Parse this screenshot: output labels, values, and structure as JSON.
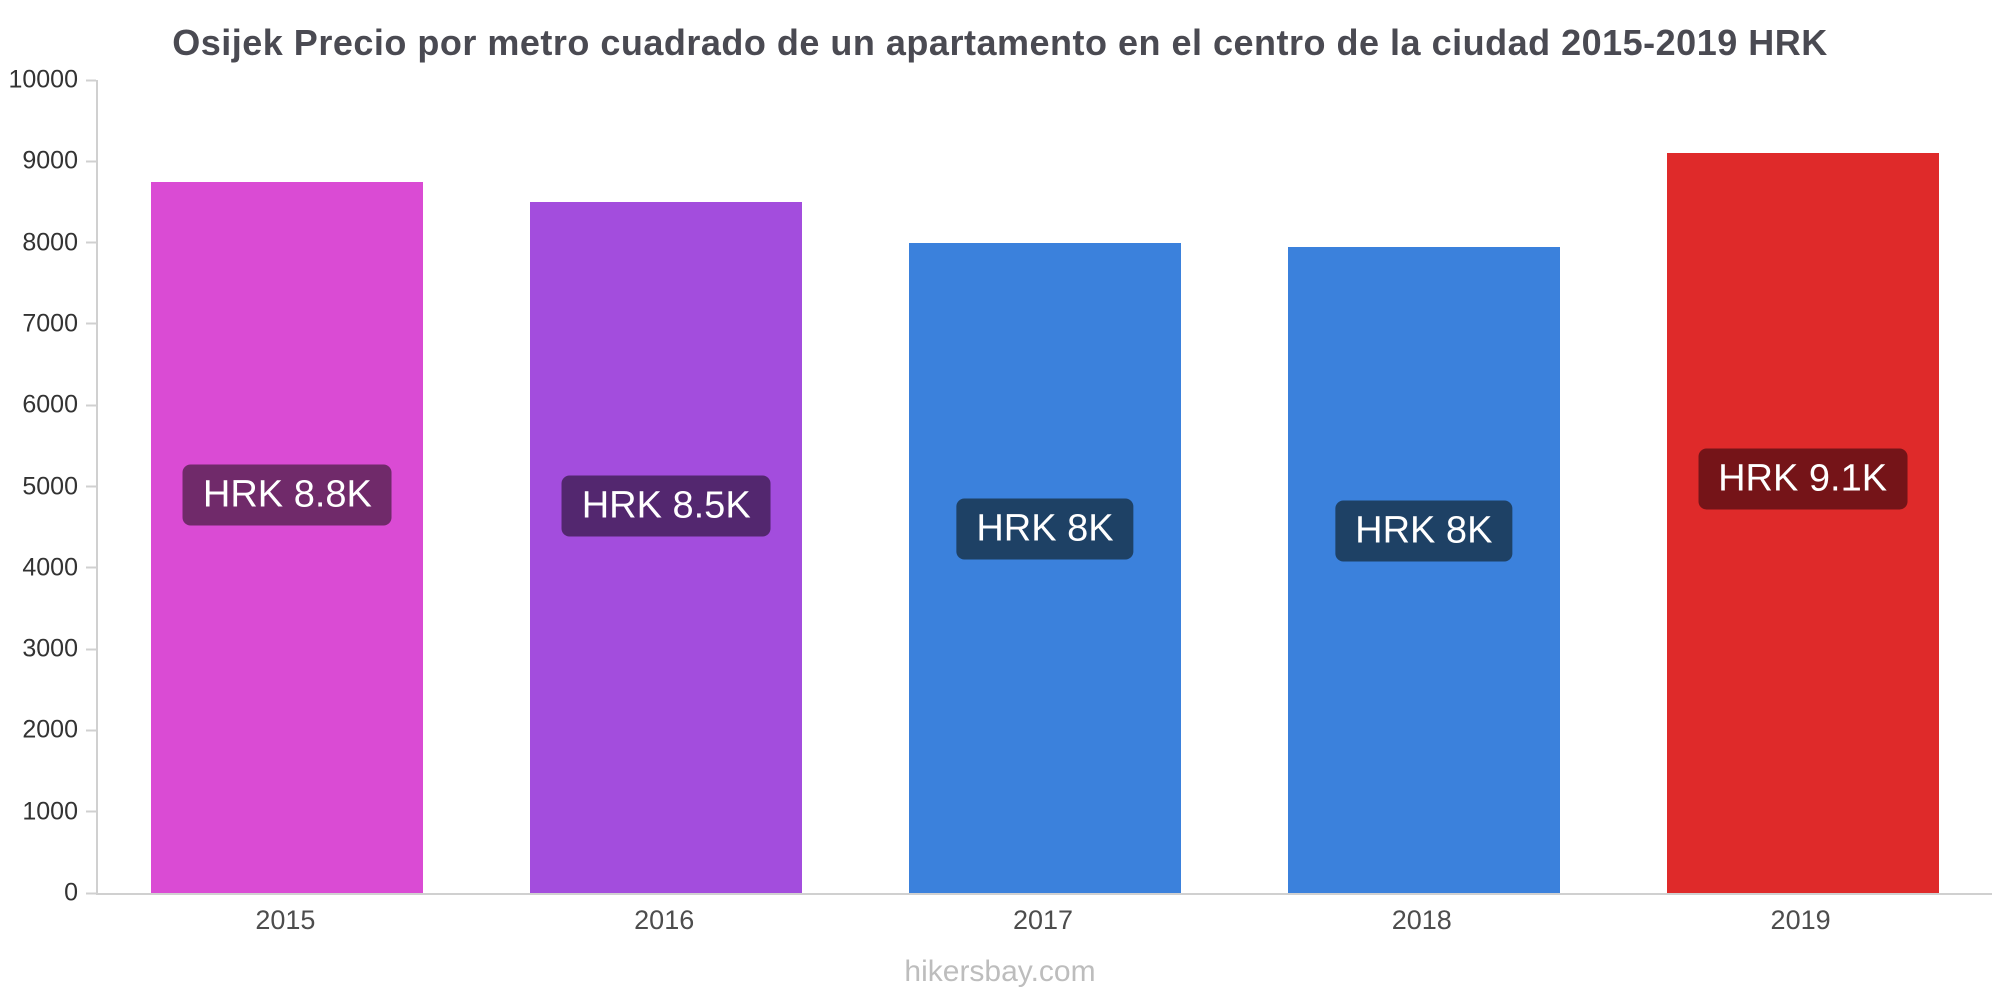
{
  "page": {
    "watermark": "hikersbay.com"
  },
  "chart_data": {
    "type": "bar",
    "title": "Osijek Precio por metro cuadrado de un apartamento en el centro de la ciudad 2015-2019 HRK",
    "categories": [
      "2015",
      "2016",
      "2017",
      "2018",
      "2019"
    ],
    "values": [
      8750,
      8500,
      8000,
      7950,
      9100
    ],
    "bar_labels": [
      "HRK 8.8K",
      "HRK 8.5K",
      "HRK 8K",
      "HRK 8K",
      "HRK 9.1K"
    ],
    "bar_colors": [
      "#da4bd4",
      "#a34ddd",
      "#3b81dc",
      "#3b81dc",
      "#df2a2a"
    ],
    "bar_label_bg_colors": [
      "#702a6a",
      "#53276f",
      "#1e4165",
      "#1e4165",
      "#751418"
    ],
    "xlabel": "",
    "ylabel": "",
    "ylim": [
      0,
      10000
    ],
    "ytick_labels": [
      "0",
      "1000",
      "2000",
      "3000",
      "4000",
      "5000",
      "6000",
      "7000",
      "8000",
      "9000",
      "10000"
    ],
    "grid": "off",
    "legend": "none",
    "axis_color": "#d0d0d0"
  }
}
